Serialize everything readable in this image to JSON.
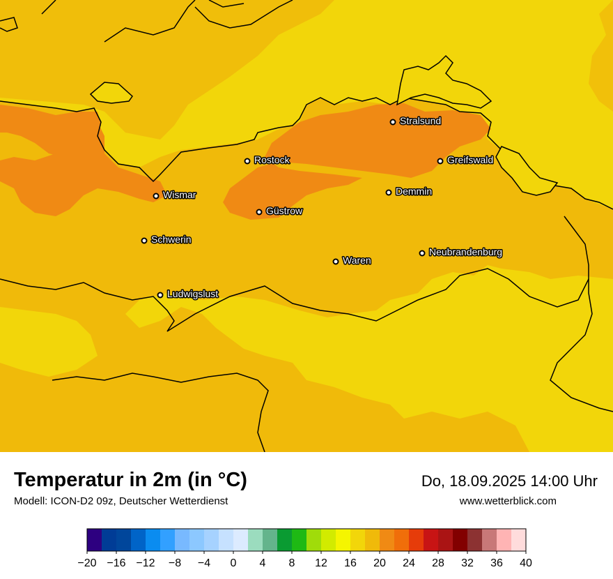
{
  "title": "Temperatur in 2m (in °C)",
  "subtitle": "Modell: ICON-D2 09z, Deutscher Wetterdienst",
  "datetime": "Do, 18.09.2025 14:00 Uhr",
  "website": "www.wetterblick.com",
  "colors": {
    "sea_yellow": "#f2d60a",
    "land_orange": "#f0ba0a",
    "hot_orange": "#f08a14",
    "border": "#000000"
  },
  "cities": [
    {
      "name": "Stralsund"
    },
    {
      "name": "Rostock"
    },
    {
      "name": "Greifswald"
    },
    {
      "name": "Wismar"
    },
    {
      "name": "Demmin"
    },
    {
      "name": "Güstrow"
    },
    {
      "name": "Schwerin"
    },
    {
      "name": "Neubrandenburg"
    },
    {
      "name": "Waren"
    },
    {
      "name": "Ludwigslust"
    }
  ],
  "legend": {
    "unit": "°C",
    "min": -20,
    "max": 40,
    "step": 2,
    "colors": [
      "#2d0080",
      "#003c96",
      "#00469b",
      "#0064c8",
      "#0a8cf0",
      "#32a0ff",
      "#78b9ff",
      "#8cc8ff",
      "#a6d2ff",
      "#c6e1ff",
      "#dcebff",
      "#9bdcbe",
      "#64b48c",
      "#0a9b32",
      "#1eb914",
      "#a0dc0a",
      "#d2eb00",
      "#f5f500",
      "#f2d60a",
      "#f0ba0a",
      "#f08a14",
      "#f06e0a",
      "#e63c0a",
      "#c81414",
      "#aa1414",
      "#820000",
      "#8c3232",
      "#c87878",
      "#ffb4b4",
      "#ffdcdc"
    ],
    "ticks": [
      "−20",
      "−16",
      "−12",
      "−8",
      "−4",
      "0",
      "4",
      "8",
      "12",
      "16",
      "20",
      "24",
      "28",
      "32",
      "36",
      "40"
    ]
  }
}
